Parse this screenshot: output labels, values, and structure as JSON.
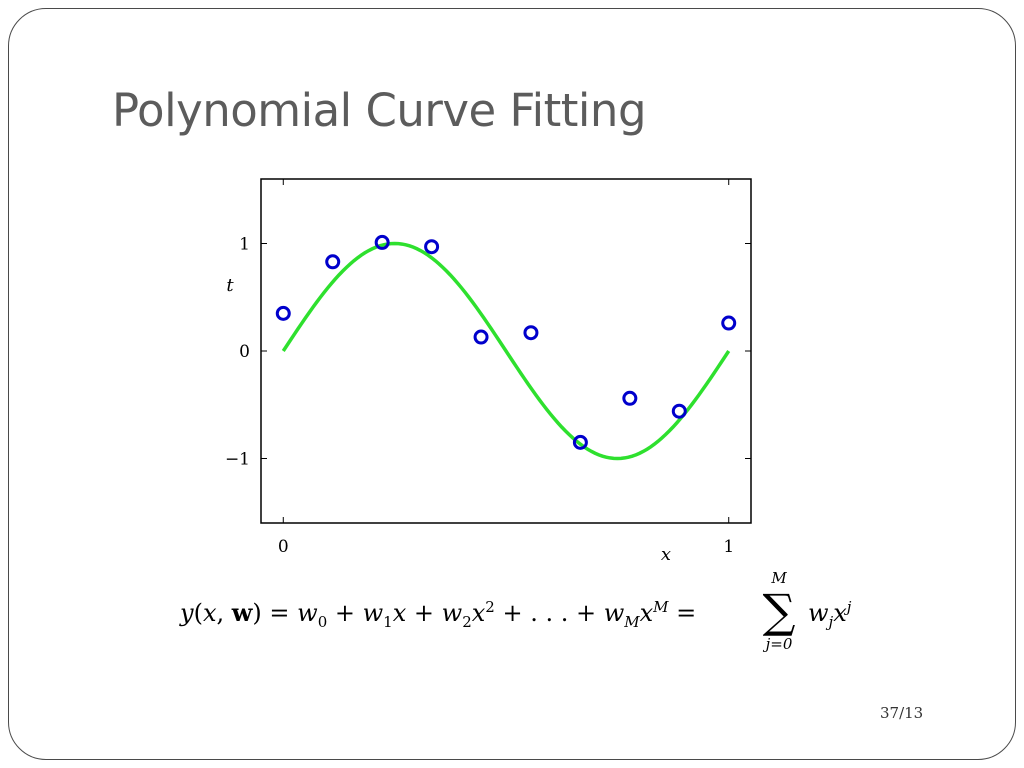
{
  "slide": {
    "title": "Polynomial Curve Fitting",
    "page_number": "37/13"
  },
  "equation": {
    "lhs": "y(x, w)",
    "expansion": "= w0 + w1x + w2x² + . . . + wMx^M =",
    "sum_upper": "M",
    "sum_lower": "j=0",
    "sum_term": "wjx^j"
  },
  "chart_data": {
    "type": "scatter",
    "xlabel": "x",
    "ylabel": "t",
    "xlim": [
      -0.05,
      1.05
    ],
    "ylim": [
      -1.6,
      1.6
    ],
    "x_ticks": [
      0,
      1
    ],
    "y_ticks": [
      -1,
      0,
      1
    ],
    "x_tick_labels": [
      "0",
      "1"
    ],
    "y_tick_labels": [
      "−1",
      "0",
      "1"
    ],
    "grid": false,
    "colors": {
      "points": "#0000cc",
      "curve": "#2ee02e"
    },
    "series": [
      {
        "type": "scatter",
        "marker": "circle-open",
        "x": [
          0.0,
          0.111,
          0.222,
          0.333,
          0.444,
          0.556,
          0.667,
          0.778,
          0.889,
          1.0
        ],
        "y": [
          0.35,
          0.83,
          1.01,
          0.97,
          0.13,
          0.17,
          -0.85,
          -0.44,
          -0.56,
          0.26
        ]
      },
      {
        "type": "line",
        "function": "sin(2πx)",
        "x_range": [
          0,
          1
        ]
      }
    ]
  }
}
